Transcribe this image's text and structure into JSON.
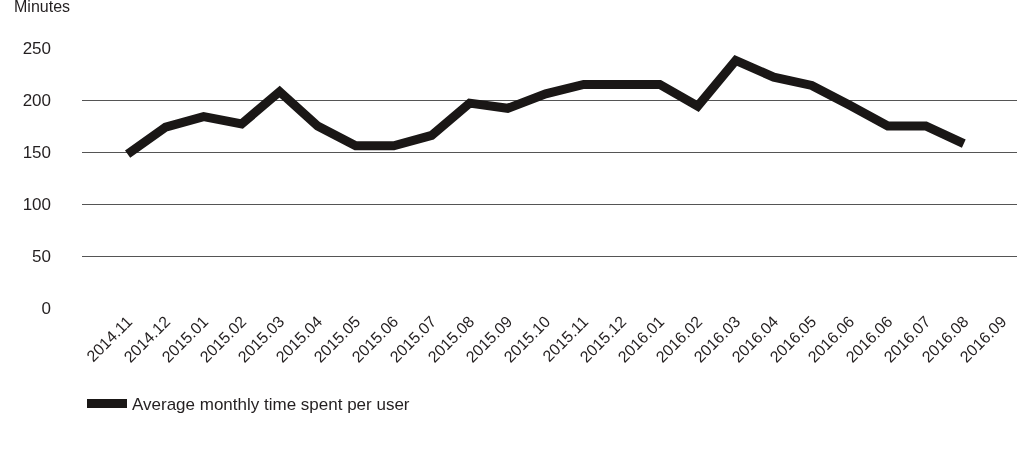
{
  "chart_data": {
    "type": "line",
    "ylabel": "Minutes",
    "categories": [
      "2014.11",
      "2014.12",
      "2015.01",
      "2015.02",
      "2015.03",
      "2015.04",
      "2015.05",
      "2015.06",
      "2015.07",
      "2015.08",
      "2015.09",
      "2015.10",
      "2015.11",
      "2015.12",
      "2016.01",
      "2016.02",
      "2016.03",
      "2016.04",
      "2016.05",
      "2016.06",
      "2016.06",
      "2016.07",
      "2016.08",
      "2016.09"
    ],
    "series": [
      {
        "name": "Average monthly time spent per user",
        "color": "#1a1716",
        "values": [
          148,
          174,
          184,
          177,
          208,
          175,
          156,
          156,
          166,
          197,
          192,
          206,
          215,
          215,
          215,
          194,
          238,
          222,
          214,
          195,
          175,
          175,
          158,
          null
        ]
      }
    ],
    "ylim": [
      0,
      250
    ],
    "yticks": [
      0,
      50,
      100,
      150,
      200,
      250
    ],
    "grid": "y",
    "legend": "bottom left",
    "marker": "none",
    "line_style": "solid"
  }
}
